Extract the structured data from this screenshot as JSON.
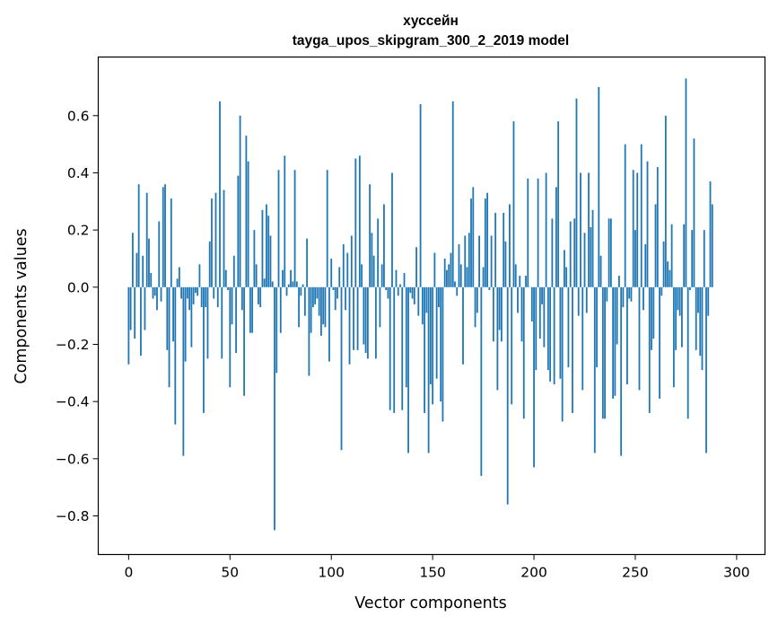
{
  "chart_data": {
    "type": "bar",
    "title_line1": "хуссейн",
    "title_line2": "tayga_upos_skipgram_300_2_2019 model",
    "xlabel": "Vector components",
    "ylabel": "Components values",
    "xlim": [
      -15,
      314
    ],
    "ylim": [
      -0.935,
      0.805
    ],
    "xticks": [
      0,
      50,
      100,
      150,
      200,
      250,
      300
    ],
    "xtick_labels": [
      "0",
      "50",
      "100",
      "150",
      "200",
      "250",
      "300"
    ],
    "yticks": [
      -0.8,
      -0.6,
      -0.4,
      -0.2,
      0.0,
      0.2,
      0.4,
      0.6
    ],
    "ytick_labels": [
      "−0.8",
      "−0.6",
      "−0.4",
      "−0.2",
      "0.0",
      "0.2",
      "0.4",
      "0.6"
    ],
    "grid": false,
    "bar_color": "#1f77b4",
    "values": [
      -0.27,
      -0.15,
      0.19,
      -0.18,
      0.12,
      0.36,
      -0.24,
      0.11,
      -0.15,
      0.33,
      0.17,
      0.05,
      -0.04,
      -0.03,
      -0.08,
      0.23,
      -0.05,
      0.35,
      0.36,
      -0.22,
      -0.35,
      0.31,
      -0.19,
      -0.48,
      0.03,
      0.07,
      -0.04,
      -0.59,
      -0.26,
      -0.04,
      -0.08,
      -0.21,
      -0.06,
      -0.02,
      -0.03,
      0.08,
      -0.07,
      -0.44,
      -0.07,
      -0.25,
      0.16,
      0.31,
      -0.04,
      0.33,
      -0.07,
      0.65,
      -0.25,
      0.34,
      0.06,
      -0.01,
      -0.35,
      -0.13,
      0.11,
      -0.23,
      0.39,
      0.6,
      -0.08,
      -0.38,
      0.53,
      0.44,
      -0.16,
      -0.16,
      0.2,
      0.08,
      -0.06,
      -0.07,
      0.27,
      0.03,
      0.29,
      0.25,
      0.18,
      0.02,
      -0.85,
      -0.3,
      0.41,
      -0.16,
      0.06,
      0.46,
      -0.03,
      0.01,
      0.06,
      0.02,
      0.41,
      0.02,
      -0.14,
      -0.03,
      0.01,
      -0.1,
      0.17,
      -0.31,
      -0.16,
      -0.07,
      -0.06,
      -0.04,
      -0.1,
      -0.17,
      -0.13,
      -0.14,
      0.41,
      -0.26,
      0.1,
      -0.01,
      -0.08,
      -0.04,
      0.07,
      -0.57,
      0.15,
      -0.08,
      0.12,
      -0.27,
      0.18,
      -0.22,
      0.45,
      -0.22,
      0.46,
      0.08,
      -0.2,
      -0.23,
      -0.25,
      0.36,
      0.19,
      0.11,
      -0.25,
      0.24,
      -0.14,
      0.08,
      0.29,
      -0.01,
      -0.04,
      -0.43,
      0.4,
      -0.44,
      0.06,
      -0.03,
      0.01,
      -0.43,
      0.05,
      -0.35,
      -0.58,
      -0.02,
      -0.04,
      -0.06,
      0.14,
      -0.1,
      0.64,
      -0.13,
      -0.44,
      -0.09,
      -0.58,
      -0.34,
      -0.41,
      0.12,
      -0.32,
      -0.07,
      -0.4,
      -0.47,
      0.1,
      0.06,
      0.08,
      0.12,
      0.65,
      0.02,
      -0.03,
      0.15,
      0.08,
      -0.27,
      0.18,
      0.07,
      0.19,
      0.31,
      0.35,
      -0.14,
      -0.09,
      0.18,
      -0.66,
      0.07,
      0.31,
      0.33,
      -0.01,
      0.18,
      -0.19,
      0.26,
      -0.36,
      -0.15,
      -0.19,
      0.26,
      0.16,
      -0.76,
      0.29,
      -0.41,
      0.58,
      0.08,
      -0.09,
      0.04,
      -0.19,
      -0.46,
      0.04,
      0.38,
      0.0,
      -0.12,
      -0.63,
      -0.29,
      0.38,
      -0.18,
      -0.06,
      -0.21,
      0.4,
      -0.29,
      -0.33,
      0.24,
      -0.34,
      0.35,
      0.58,
      -0.32,
      -0.47,
      0.13,
      0.07,
      -0.28,
      0.23,
      -0.44,
      0.24,
      0.66,
      -0.1,
      0.4,
      -0.36,
      0.19,
      -0.09,
      0.4,
      0.21,
      0.27,
      -0.58,
      -0.28,
      0.7,
      0.11,
      -0.46,
      -0.46,
      -0.05,
      0.24,
      0.24,
      -0.39,
      -0.38,
      -0.2,
      0.04,
      -0.59,
      -0.07,
      0.5,
      -0.34,
      -0.04,
      -0.05,
      0.41,
      0.2,
      0.4,
      -0.36,
      0.5,
      -0.08,
      0.15,
      0.44,
      -0.44,
      -0.22,
      -0.18,
      0.29,
      0.42,
      -0.39,
      -0.03,
      0.16,
      0.6,
      0.09,
      0.06,
      0.22,
      -0.35,
      -0.22,
      -0.08,
      -0.1,
      -0.21,
      0.22,
      0.73,
      -0.46,
      -0.01,
      0.2,
      0.52,
      -0.22,
      -0.09,
      -0.24,
      -0.29,
      0.2,
      -0.58,
      -0.1,
      0.37,
      0.29
    ]
  }
}
